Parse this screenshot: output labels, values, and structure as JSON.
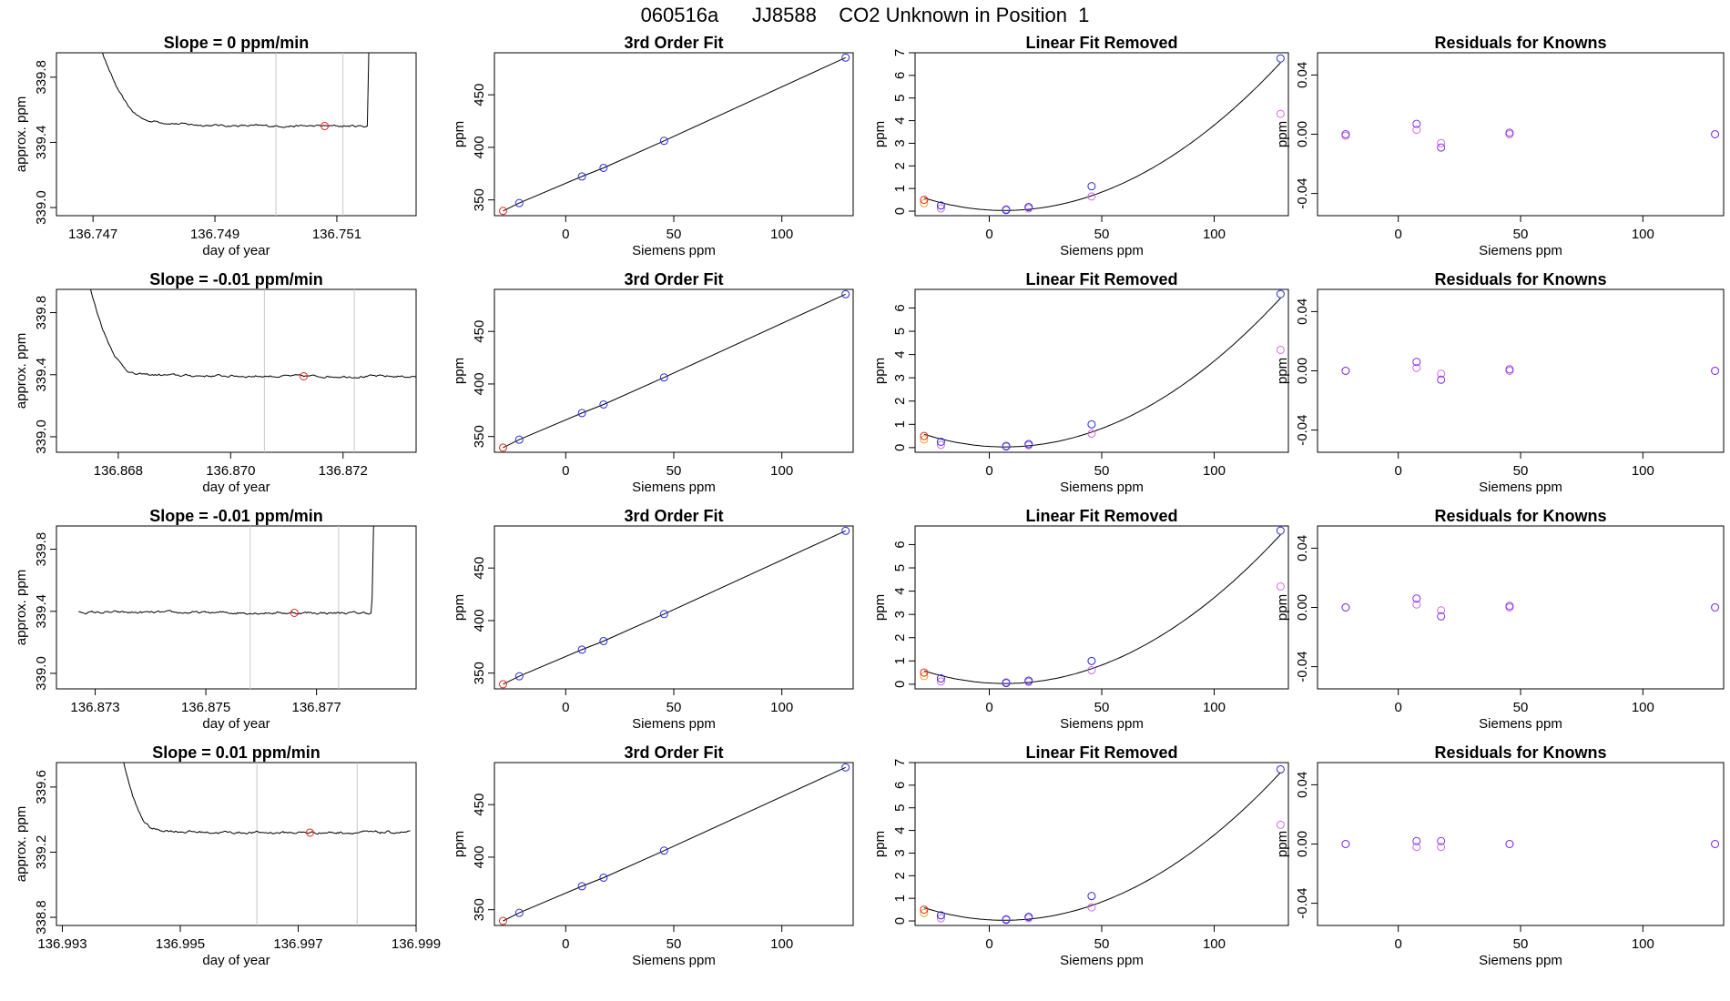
{
  "title": "060516a      JJ8588    CO2 Unknown in Position  1",
  "colors": {
    "trace": "#000000",
    "marker_red": "#e8261a",
    "marker_blue": "#2a2ae0",
    "marker_purple": "#7b2ff0",
    "marker_magenta": "#d766e0",
    "marker_orange": "#f4a22a",
    "window_line": "#c8c8c8"
  },
  "chart_data": [
    {
      "type": "line",
      "panel": "timeseries",
      "row": 1,
      "title": "Slope =  0  ppm/min",
      "xlabel": "day of year",
      "ylabel": "approx. ppm",
      "xlim": [
        136.7464,
        136.7523
      ],
      "ylim": [
        338.95,
        339.95
      ],
      "xticks": [
        136.747,
        136.749,
        136.751
      ],
      "xtick_labels": [
        "136.747",
        "136.749",
        "136.751"
      ],
      "yticks": [
        339.0,
        339.4,
        339.8
      ],
      "ytick_labels": [
        "339.0",
        "339.4",
        "339.8"
      ],
      "x_range": [
        136.7468,
        136.752
      ],
      "spike_start": 136.748,
      "spike_end": 136.7515,
      "baseline": 339.5,
      "settle": 339.53,
      "drift": 0.0,
      "noise": 0.005,
      "window": [
        136.75,
        136.7511
      ],
      "marker": [
        136.7508,
        339.5
      ]
    },
    {
      "type": "line",
      "panel": "timeseries",
      "row": 2,
      "title": "Slope =  -0.01  ppm/min",
      "xlabel": "day of year",
      "ylabel": "approx. ppm",
      "xlim": [
        136.8669,
        136.8733
      ],
      "ylim": [
        338.9,
        339.95
      ],
      "xticks": [
        136.868,
        136.87,
        136.872
      ],
      "xtick_labels": [
        "136.868",
        "136.870",
        "136.872"
      ],
      "yticks": [
        339.0,
        339.4,
        339.8
      ],
      "ytick_labels": [
        "339.0",
        "339.4",
        "339.8"
      ],
      "x_range": [
        136.8672,
        136.8734
      ],
      "spike_start": 136.8684,
      "spike_end": null,
      "baseline": 339.39,
      "settle": 339.4,
      "drift": -0.01,
      "noise": 0.006,
      "window": [
        136.8706,
        136.8722
      ],
      "marker": [
        136.8713,
        339.39
      ]
    },
    {
      "type": "line",
      "panel": "timeseries",
      "row": 3,
      "title": "Slope =  -0.01  ppm/min",
      "xlabel": "day of year",
      "ylabel": "approx. ppm",
      "xlim": [
        136.8723,
        136.8788
      ],
      "ylim": [
        338.9,
        339.95
      ],
      "xticks": [
        136.873,
        136.875,
        136.877
      ],
      "xtick_labels": [
        "136.873",
        "136.875",
        "136.877"
      ],
      "yticks": [
        339.0,
        339.4,
        339.8
      ],
      "ytick_labels": [
        "339.0",
        "339.4",
        "339.8"
      ],
      "x_range": [
        136.8727,
        136.8784
      ],
      "spike_start": null,
      "spike_end": 136.878,
      "baseline": 339.39,
      "settle": 339.39,
      "drift": -0.01,
      "noise": 0.006,
      "window": [
        136.8758,
        136.8774
      ],
      "marker": [
        136.8766,
        339.39
      ]
    },
    {
      "type": "line",
      "panel": "timeseries",
      "row": 4,
      "title": "Slope =  0.01  ppm/min",
      "xlabel": "day of year",
      "ylabel": "approx. ppm",
      "xlim": [
        136.9929,
        136.999
      ],
      "ylim": [
        338.75,
        339.75
      ],
      "xticks": [
        136.993,
        136.995,
        136.997,
        136.999
      ],
      "xtick_labels": [
        "136.993",
        "136.995",
        "136.997",
        "136.999"
      ],
      "yticks": [
        338.8,
        339.2,
        339.6
      ],
      "ytick_labels": [
        "338.8",
        "339.2",
        "339.6"
      ],
      "x_range": [
        136.9938,
        136.9989
      ],
      "spike_start": 136.9946,
      "spike_end": null,
      "baseline": 339.32,
      "settle": 339.34,
      "drift": 0.01,
      "noise": 0.006,
      "window": [
        136.9963,
        136.998
      ],
      "marker": [
        136.9972,
        339.32
      ]
    },
    {
      "type": "scatter",
      "panel": "fit",
      "row": 1,
      "title": "3rd Order Fit",
      "xlabel": "Siemens ppm",
      "ylabel": "ppm",
      "xlim": [
        -33,
        133
      ],
      "ylim": [
        335,
        490
      ],
      "xticks": [
        0,
        50,
        100
      ],
      "xtick_labels": [
        "0",
        "50",
        "100"
      ],
      "yticks": [
        350,
        400,
        450
      ],
      "ytick_labels": [
        "350",
        "400",
        "450"
      ],
      "knowns_x": [
        -21.5,
        7.5,
        17.5,
        45.5,
        129.5
      ],
      "knowns_y": [
        347.0,
        372.3,
        380.5,
        406.2,
        485.4
      ],
      "unknown": [
        -29.0,
        339.5
      ],
      "curve": [
        [
          -29.0,
          339.5
        ],
        [
          -21.5,
          347.0
        ],
        [
          7.5,
          372.3
        ],
        [
          17.5,
          380.5
        ],
        [
          45.5,
          406.2
        ],
        [
          129.5,
          485.4
        ]
      ]
    },
    {
      "type": "scatter",
      "panel": "fit",
      "row": 2,
      "title": "3rd Order Fit",
      "xlabel": "Siemens ppm",
      "ylabel": "ppm",
      "xlim": [
        -33,
        133
      ],
      "ylim": [
        335,
        490
      ],
      "xticks": [
        0,
        50,
        100
      ],
      "xtick_labels": [
        "0",
        "50",
        "100"
      ],
      "yticks": [
        350,
        400,
        450
      ],
      "ytick_labels": [
        "350",
        "400",
        "450"
      ],
      "knowns_x": [
        -21.5,
        7.5,
        17.5,
        45.5,
        129.5
      ],
      "knowns_y": [
        347.0,
        372.3,
        380.5,
        406.2,
        485.4
      ],
      "unknown": [
        -29.0,
        339.4
      ],
      "curve": [
        [
          -29.0,
          339.4
        ],
        [
          -21.5,
          347.0
        ],
        [
          7.5,
          372.3
        ],
        [
          17.5,
          380.5
        ],
        [
          45.5,
          406.2
        ],
        [
          129.5,
          485.4
        ]
      ]
    },
    {
      "type": "scatter",
      "panel": "fit",
      "row": 3,
      "title": "3rd Order Fit",
      "xlabel": "Siemens ppm",
      "ylabel": "ppm",
      "xlim": [
        -33,
        133
      ],
      "ylim": [
        335,
        490
      ],
      "xticks": [
        0,
        50,
        100
      ],
      "xtick_labels": [
        "0",
        "50",
        "100"
      ],
      "yticks": [
        350,
        400,
        450
      ],
      "ytick_labels": [
        "350",
        "400",
        "450"
      ],
      "knowns_x": [
        -21.5,
        7.5,
        17.5,
        45.5,
        129.5
      ],
      "knowns_y": [
        347.0,
        372.3,
        380.5,
        406.2,
        485.4
      ],
      "unknown": [
        -29.0,
        339.4
      ],
      "curve": [
        [
          -29.0,
          339.4
        ],
        [
          -21.5,
          347.0
        ],
        [
          7.5,
          372.3
        ],
        [
          17.5,
          380.5
        ],
        [
          45.5,
          406.2
        ],
        [
          129.5,
          485.4
        ]
      ]
    },
    {
      "type": "scatter",
      "panel": "fit",
      "row": 4,
      "title": "3rd Order Fit",
      "xlabel": "Siemens ppm",
      "ylabel": "ppm",
      "xlim": [
        -33,
        133
      ],
      "ylim": [
        335,
        490
      ],
      "xticks": [
        0,
        50,
        100
      ],
      "xtick_labels": [
        "0",
        "50",
        "100"
      ],
      "yticks": [
        350,
        400,
        450
      ],
      "ytick_labels": [
        "350",
        "400",
        "450"
      ],
      "knowns_x": [
        -21.5,
        7.5,
        17.5,
        45.5,
        129.5
      ],
      "knowns_y": [
        347.0,
        372.3,
        380.5,
        406.2,
        485.4
      ],
      "unknown": [
        -29.0,
        339.3
      ],
      "curve": [
        [
          -29.0,
          339.3
        ],
        [
          -21.5,
          347.0
        ],
        [
          7.5,
          372.3
        ],
        [
          17.5,
          380.5
        ],
        [
          45.5,
          406.2
        ],
        [
          129.5,
          485.4
        ]
      ]
    },
    {
      "type": "scatter",
      "panel": "linear",
      "row": 1,
      "title": "Linear Fit Removed",
      "xlabel": "Siemens ppm",
      "ylabel": "ppm",
      "xlim": [
        -33,
        133
      ],
      "ylim": [
        -0.2,
        7.0
      ],
      "xticks": [
        0,
        50,
        100
      ],
      "xtick_labels": [
        "0",
        "50",
        "100"
      ],
      "yticks": [
        0,
        1,
        2,
        3,
        4,
        5,
        6,
        7
      ],
      "ytick_labels": [
        "0",
        "1",
        "2",
        "3",
        "4",
        "5",
        "6",
        "7"
      ],
      "knowns_x": [
        -21.5,
        7.5,
        17.5,
        45.5,
        129.5
      ],
      "blue_y": [
        0.25,
        0.05,
        0.18,
        1.1,
        6.75
      ],
      "magenta_y": [
        0.12,
        0.08,
        0.12,
        0.65,
        4.3
      ],
      "unknown_red": [
        -29.0,
        0.5
      ],
      "unknown_orange": [
        -29.0,
        0.35
      ],
      "curve_coef": [
        0.000433,
        -0.0058,
        0.05
      ]
    },
    {
      "type": "scatter",
      "panel": "linear",
      "row": 2,
      "title": "Linear Fit Removed",
      "xlabel": "Siemens ppm",
      "ylabel": "ppm",
      "xlim": [
        -33,
        133
      ],
      "ylim": [
        -0.2,
        6.8
      ],
      "xticks": [
        0,
        50,
        100
      ],
      "xtick_labels": [
        "0",
        "50",
        "100"
      ],
      "yticks": [
        0,
        1,
        2,
        3,
        4,
        5,
        6
      ],
      "ytick_labels": [
        "0",
        "1",
        "2",
        "3",
        "4",
        "5",
        "6"
      ],
      "knowns_x": [
        -21.5,
        7.5,
        17.5,
        45.5,
        129.5
      ],
      "blue_y": [
        0.25,
        0.05,
        0.15,
        1.0,
        6.6
      ],
      "magenta_y": [
        0.12,
        0.08,
        0.1,
        0.6,
        4.2
      ],
      "unknown_red": [
        -29.0,
        0.5
      ],
      "unknown_orange": [
        -29.0,
        0.35
      ],
      "curve_coef": [
        0.000425,
        -0.0058,
        0.05
      ]
    },
    {
      "type": "scatter",
      "panel": "linear",
      "row": 3,
      "title": "Linear Fit Removed",
      "xlabel": "Siemens ppm",
      "ylabel": "ppm",
      "xlim": [
        -33,
        133
      ],
      "ylim": [
        -0.2,
        6.8
      ],
      "xticks": [
        0,
        50,
        100
      ],
      "xtick_labels": [
        "0",
        "50",
        "100"
      ],
      "yticks": [
        0,
        1,
        2,
        3,
        4,
        5,
        6
      ],
      "ytick_labels": [
        "0",
        "1",
        "2",
        "3",
        "4",
        "5",
        "6"
      ],
      "knowns_x": [
        -21.5,
        7.5,
        17.5,
        45.5,
        129.5
      ],
      "blue_y": [
        0.25,
        0.05,
        0.15,
        1.0,
        6.6
      ],
      "magenta_y": [
        0.12,
        0.08,
        0.1,
        0.6,
        4.2
      ],
      "unknown_red": [
        -29.0,
        0.5
      ],
      "unknown_orange": [
        -29.0,
        0.35
      ],
      "curve_coef": [
        0.000425,
        -0.0058,
        0.05
      ]
    },
    {
      "type": "scatter",
      "panel": "linear",
      "row": 4,
      "title": "Linear Fit Removed",
      "xlabel": "Siemens ppm",
      "ylabel": "ppm",
      "xlim": [
        -33,
        133
      ],
      "ylim": [
        -0.2,
        7.0
      ],
      "xticks": [
        0,
        50,
        100
      ],
      "xtick_labels": [
        "0",
        "50",
        "100"
      ],
      "yticks": [
        0,
        1,
        2,
        3,
        4,
        5,
        6,
        7
      ],
      "ytick_labels": [
        "0",
        "1",
        "2",
        "3",
        "4",
        "5",
        "6",
        "7"
      ],
      "knowns_x": [
        -21.5,
        7.5,
        17.5,
        45.5,
        129.5
      ],
      "blue_y": [
        0.25,
        0.05,
        0.18,
        1.1,
        6.7
      ],
      "magenta_y": [
        0.12,
        0.08,
        0.12,
        0.6,
        4.25
      ],
      "unknown_red": [
        -29.0,
        0.5
      ],
      "unknown_orange": [
        -29.0,
        0.35
      ],
      "curve_coef": [
        0.000433,
        -0.0058,
        0.05
      ]
    },
    {
      "type": "scatter",
      "panel": "residuals",
      "row": 1,
      "title": "Residuals for Knowns",
      "xlabel": "Siemens ppm",
      "ylabel": "ppm",
      "xlim": [
        -33,
        133
      ],
      "ylim": [
        -0.055,
        0.055
      ],
      "xticks": [
        0,
        50,
        100
      ],
      "xtick_labels": [
        "0",
        "50",
        "100"
      ],
      "yticks": [
        -0.04,
        0.0,
        0.04
      ],
      "ytick_labels": [
        "-0.04",
        "0.00",
        "0.04"
      ],
      "knowns_x": [
        -21.5,
        7.5,
        17.5,
        45.5,
        129.5
      ],
      "blue_y": [
        0.0,
        0.007,
        -0.009,
        0.001,
        0.0
      ],
      "magenta_y": [
        -0.001,
        0.003,
        -0.006,
        0.0,
        0.0
      ]
    },
    {
      "type": "scatter",
      "panel": "residuals",
      "row": 2,
      "title": "Residuals for Knowns",
      "xlabel": "Siemens ppm",
      "ylabel": "ppm",
      "xlim": [
        -33,
        133
      ],
      "ylim": [
        -0.055,
        0.055
      ],
      "xticks": [
        0,
        50,
        100
      ],
      "xtick_labels": [
        "0",
        "50",
        "100"
      ],
      "yticks": [
        -0.04,
        0.0,
        0.04
      ],
      "ytick_labels": [
        "-0.04",
        "0.00",
        "0.04"
      ],
      "knowns_x": [
        -21.5,
        7.5,
        17.5,
        45.5,
        129.5
      ],
      "blue_y": [
        0.0,
        0.006,
        -0.006,
        0.001,
        0.0
      ],
      "magenta_y": [
        0.0,
        0.002,
        -0.002,
        0.0,
        0.0
      ]
    },
    {
      "type": "scatter",
      "panel": "residuals",
      "row": 3,
      "title": "Residuals for Knowns",
      "xlabel": "Siemens ppm",
      "ylabel": "ppm",
      "xlim": [
        -33,
        133
      ],
      "ylim": [
        -0.055,
        0.055
      ],
      "xticks": [
        0,
        50,
        100
      ],
      "xtick_labels": [
        "0",
        "50",
        "100"
      ],
      "yticks": [
        -0.04,
        0.0,
        0.04
      ],
      "ytick_labels": [
        "-0.04",
        "0.00",
        "0.04"
      ],
      "knowns_x": [
        -21.5,
        7.5,
        17.5,
        45.5,
        129.5
      ],
      "blue_y": [
        0.0,
        0.006,
        -0.006,
        0.001,
        0.0
      ],
      "magenta_y": [
        0.0,
        0.002,
        -0.002,
        0.0,
        0.0
      ]
    },
    {
      "type": "scatter",
      "panel": "residuals",
      "row": 4,
      "title": "Residuals for Knowns",
      "xlabel": "Siemens ppm",
      "ylabel": "ppm",
      "xlim": [
        -33,
        133
      ],
      "ylim": [
        -0.055,
        0.055
      ],
      "xticks": [
        0,
        50,
        100
      ],
      "xtick_labels": [
        "0",
        "50",
        "100"
      ],
      "yticks": [
        -0.04,
        0.0,
        0.04
      ],
      "ytick_labels": [
        "-0.04",
        "0.00",
        "0.04"
      ],
      "knowns_x": [
        -21.5,
        7.5,
        17.5,
        45.5,
        129.5
      ],
      "blue_y": [
        0.0,
        0.002,
        0.002,
        0.0,
        0.0
      ],
      "magenta_y": [
        0.0,
        -0.002,
        -0.002,
        0.0,
        0.0
      ]
    }
  ]
}
